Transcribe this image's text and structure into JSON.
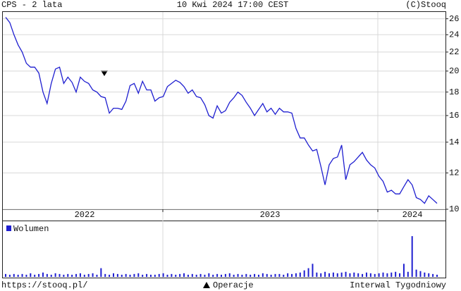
{
  "header": {
    "title": "CPS - 2 lata",
    "date": "10 Kwi 2024 17:00 CEST",
    "source": "(C)Stooq"
  },
  "footer": {
    "url": "https://stooq.pl/",
    "marker_legend": "Operacje",
    "interval": "Interwal Tygodniowy"
  },
  "chart_data": [
    {
      "type": "line",
      "log_scale": true,
      "grid": true,
      "period_labels": [
        "2022",
        "2023",
        "2024"
      ],
      "ylim": [
        10,
        26.9
      ],
      "yticks": [
        10,
        12,
        14,
        16,
        18,
        20,
        22,
        24,
        26
      ],
      "series": [
        {
          "color": "#1f1fd0",
          "values": [
            26.2,
            25.5,
            24,
            22.8,
            22,
            20.8,
            20.4,
            20.4,
            19.8,
            18,
            17,
            18.8,
            20.2,
            20.4,
            18.8,
            19.4,
            18.9,
            18,
            19.4,
            19,
            18.8,
            18.2,
            18,
            17.6,
            17.5,
            16.2,
            16.6,
            16.6,
            16.5,
            17.2,
            18.6,
            18.8,
            17.9,
            19,
            18.2,
            18.2,
            17.2,
            17.5,
            17.6,
            18.5,
            18.8,
            19.1,
            18.9,
            18.5,
            17.9,
            18.2,
            17.6,
            17.5,
            16.9,
            16,
            15.8,
            16.8,
            16.2,
            16.4,
            17.1,
            17.5,
            18,
            17.7,
            17.1,
            16.6,
            16,
            16.5,
            17,
            16.3,
            16.6,
            16.1,
            16.6,
            16.3,
            16.3,
            16.2,
            15,
            14.3,
            14.3,
            13.8,
            13.4,
            13.5,
            12.4,
            11.3,
            12.5,
            12.9,
            13,
            13.8,
            11.6,
            12.5,
            12.7,
            13,
            13.3,
            12.8,
            12.5,
            12.3,
            11.8,
            11.5,
            10.9,
            11,
            10.8,
            10.8,
            11.2,
            11.6,
            11.3,
            10.6,
            10.5,
            10.3,
            10.7,
            10.5,
            10.3
          ]
        }
      ]
    },
    {
      "type": "bar",
      "ylim": [
        0,
        60
      ],
      "series": [
        {
          "name": "Wolumen",
          "color": "#1f1fd0",
          "values": [
            4,
            3,
            4,
            3,
            4,
            3,
            5,
            3,
            4,
            6,
            4,
            3,
            5,
            4,
            3,
            4,
            3,
            4,
            5,
            3,
            4,
            5,
            3,
            12,
            4,
            3,
            5,
            4,
            3,
            4,
            3,
            4,
            5,
            3,
            4,
            3,
            3,
            4,
            5,
            3,
            4,
            3,
            4,
            5,
            3,
            4,
            3,
            4,
            3,
            5,
            3,
            4,
            3,
            4,
            5,
            3,
            4,
            3,
            4,
            3,
            4,
            3,
            5,
            4,
            3,
            4,
            4,
            3,
            5,
            4,
            5,
            6,
            9,
            12,
            18,
            6,
            5,
            7,
            5,
            6,
            5,
            6,
            7,
            5,
            6,
            5,
            4,
            6,
            5,
            4,
            5,
            6,
            5,
            6,
            7,
            5,
            18,
            7,
            56,
            10,
            8,
            6,
            5,
            4,
            3
          ]
        }
      ]
    }
  ]
}
